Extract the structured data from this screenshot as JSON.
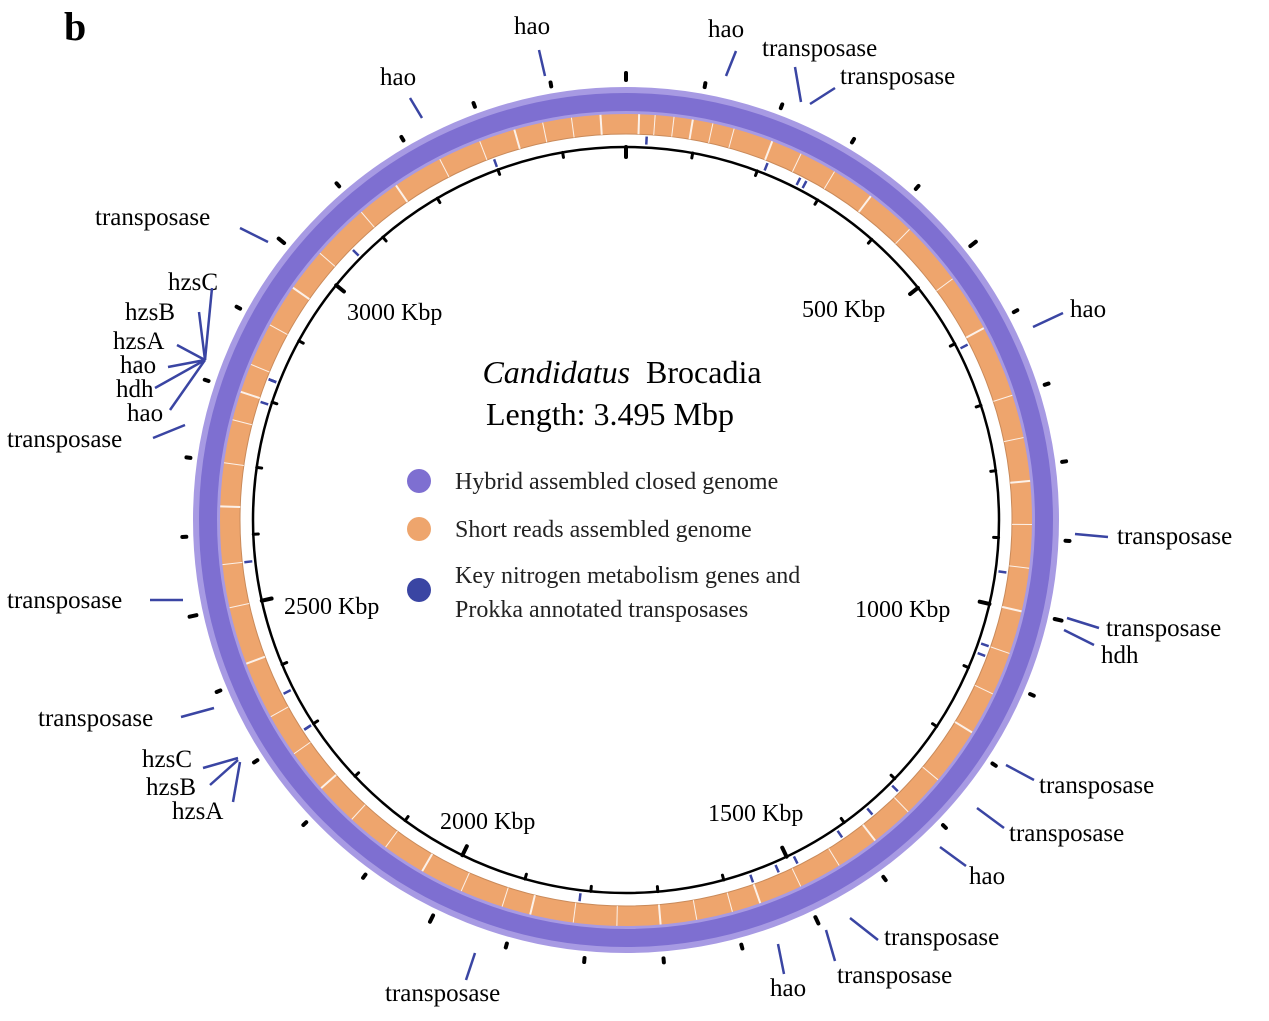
{
  "panel_label": "b",
  "title": {
    "organism_italic": "Candidatus",
    "organism_rest": "Brocadia",
    "length": "Length: 3.495 Mbp"
  },
  "genome_length_kbp": 3495,
  "legend": [
    {
      "label": "Hybrid assembled closed genome",
      "color": "#7e6fd1"
    },
    {
      "label": "Short reads assembled genome",
      "color": "#eea56d"
    },
    {
      "label": "Key nitrogen metabolism genes and",
      "label2": "Prokka annotated transposases",
      "color": "#3a45a3"
    }
  ],
  "colors": {
    "hybrid_ring": "#7e6fd1",
    "hybrid_ring_light": "#a79ae3",
    "short_reads_ring": "#eea56d",
    "gene_marks": "#3a45a3",
    "axis": "#000000"
  },
  "scale_labels": [
    {
      "label": "500 Kbp",
      "kbp": 500
    },
    {
      "label": "1000 Kbp",
      "kbp": 1000
    },
    {
      "label": "1500 Kbp",
      "kbp": 1500
    },
    {
      "label": "2000 Kbp",
      "kbp": 2000
    },
    {
      "label": "2500 Kbp",
      "kbp": 2500
    },
    {
      "label": "3000 Kbp",
      "kbp": 3000
    }
  ],
  "gene_annotations": [
    {
      "label": "hao",
      "kbp": 30
    },
    {
      "label": "hao",
      "kbp": 210
    },
    {
      "label": "transposase",
      "kbp": 262
    },
    {
      "label": "transposase",
      "kbp": 272
    },
    {
      "label": "hao",
      "kbp": 610
    },
    {
      "label": "transposase",
      "kbp": 950
    },
    {
      "label": "transposase",
      "kbp": 1060
    },
    {
      "label": "hdh",
      "kbp": 1075
    },
    {
      "label": "transposase",
      "kbp": 1310
    },
    {
      "label": "transposase",
      "kbp": 1360
    },
    {
      "label": "hao",
      "kbp": 1415
    },
    {
      "label": "transposase",
      "kbp": 1490
    },
    {
      "label": "transposase",
      "kbp": 1520
    },
    {
      "label": "hao",
      "kbp": 1560
    },
    {
      "label": "transposase",
      "kbp": 1815
    },
    {
      "label": "hzsC",
      "kbp": 2300
    },
    {
      "label": "hzsB",
      "kbp": 2300
    },
    {
      "label": "hzsA",
      "kbp": 2300
    },
    {
      "label": "transposase",
      "kbp": 2360
    },
    {
      "label": "transposase",
      "kbp": 2560
    },
    {
      "label": "transposase",
      "kbp": 2795
    },
    {
      "label": "hao",
      "kbp": 2830
    },
    {
      "label": "hdh",
      "kbp": 2830
    },
    {
      "label": "hao",
      "kbp": 2830
    },
    {
      "label": "hzsA",
      "kbp": 2830
    },
    {
      "label": "hzsB",
      "kbp": 2830
    },
    {
      "label": "hzsC",
      "kbp": 2830
    },
    {
      "label": "transposase",
      "kbp": 3055
    },
    {
      "label": "hao",
      "kbp": 3300
    }
  ]
}
